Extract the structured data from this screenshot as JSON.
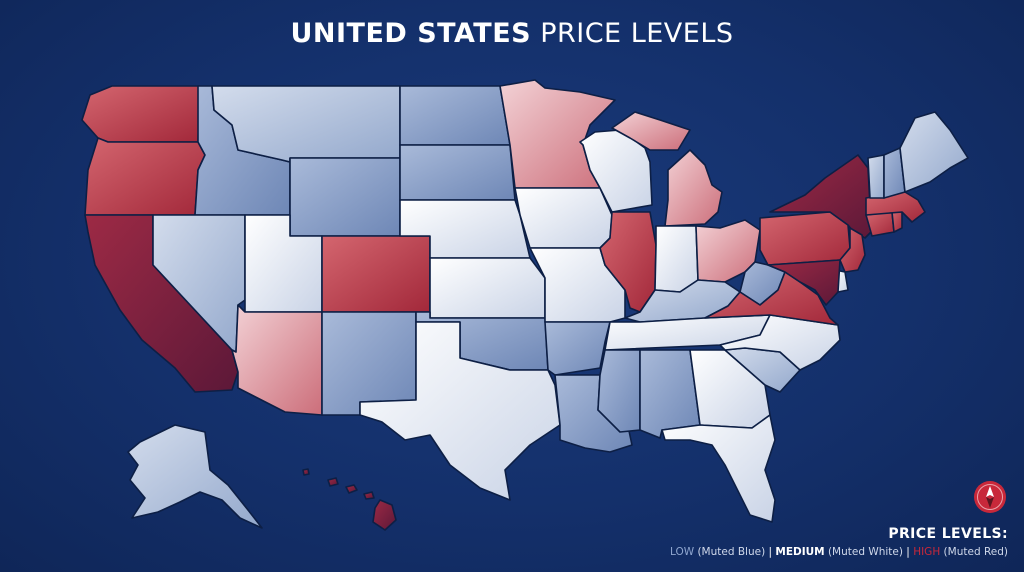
{
  "title": {
    "bold": "UNITED STATES",
    "light": "PRICE LEVELS"
  },
  "legend": {
    "title": "PRICE LEVELS:",
    "items": [
      {
        "label": "LOW",
        "desc": " (Muted Blue)",
        "color": "#8fa6cf"
      },
      {
        "label": "MEDIUM",
        "desc": " (Muted White)",
        "color": "#ffffff"
      },
      {
        "label": "HIGH",
        "desc": " (Muted Red)",
        "color": "#c8283a"
      }
    ],
    "separator": " | "
  },
  "compass": {
    "icon": "compass-icon",
    "color": "#c8283a"
  },
  "colors": {
    "background": "#14306b",
    "low": "#8fa6cf",
    "medium": "#eef1f7",
    "high": "#b02a3a",
    "border": "#0d1f45"
  },
  "states": {
    "WA": "high",
    "OR": "high",
    "CA": "very-high",
    "ID": "low",
    "NV": "low-light",
    "MT": "low-light",
    "WY": "low",
    "UT": "medium",
    "AZ": "high-light",
    "CO": "high",
    "NM": "low",
    "ND": "low",
    "SD": "low",
    "NE": "medium",
    "KS": "medium",
    "OK": "low",
    "TX": "medium",
    "MN": "high-light",
    "IA": "medium",
    "MO": "medium",
    "AR": "low",
    "LA": "low",
    "WI": "medium",
    "IL": "high",
    "MI": "high-light",
    "IN": "medium",
    "OH": "high-light",
    "KY": "low-light",
    "TN": "medium",
    "MS": "low",
    "AL": "low",
    "GA": "medium",
    "FL": "medium",
    "SC": "low-light",
    "NC": "medium",
    "VA": "high",
    "WV": "low",
    "PA": "high",
    "NY": "very-high",
    "NJ": "high",
    "MD": "very-high",
    "DE": "medium",
    "CT": "high",
    "RI": "high",
    "MA": "high",
    "VT": "low-light",
    "NH": "low",
    "ME": "low-light",
    "AK": "low-light",
    "HI": "very-high"
  }
}
